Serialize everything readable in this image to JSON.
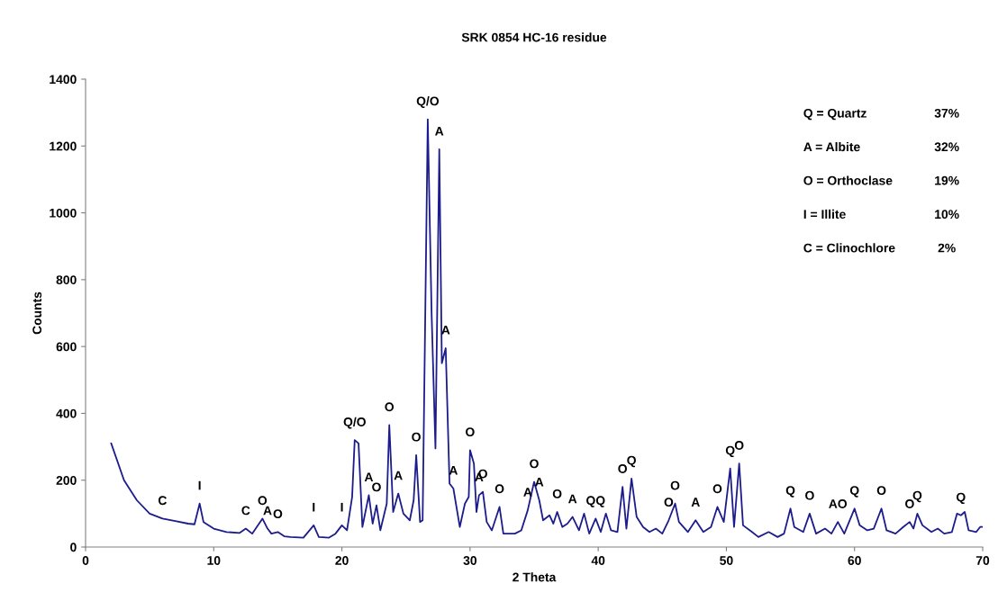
{
  "chart_data": {
    "type": "line",
    "title": "SRK 0854 HC-16 residue",
    "xlabel": "2 Theta",
    "ylabel": "Counts",
    "xlim": [
      0,
      70
    ],
    "xticks": [
      0,
      10,
      20,
      30,
      40,
      50,
      60,
      70
    ],
    "ylim": [
      0,
      1400
    ],
    "yticks": [
      0,
      200,
      400,
      600,
      800,
      1000,
      1200,
      1400
    ],
    "grid": false,
    "legend": false,
    "marker": "none",
    "line_style": "solid",
    "series": [
      {
        "color": "#1c1c8c",
        "x": [
          2,
          3,
          4,
          5,
          6,
          7,
          8,
          8.5,
          8.9,
          9.2,
          10,
          11,
          12,
          12.5,
          13,
          13.8,
          14.2,
          14.5,
          15,
          15.5,
          16,
          17,
          17.8,
          18.2,
          19,
          19.5,
          20,
          20.4,
          20.8,
          21.0,
          21.3,
          21.6,
          22.1,
          22.4,
          22.7,
          23,
          23.5,
          23.7,
          24.0,
          24.4,
          24.8,
          25.3,
          25.6,
          25.8,
          26.1,
          26.3,
          26.7,
          27.0,
          27.3,
          27.6,
          27.8,
          28.1,
          28.4,
          28.7,
          29.2,
          29.6,
          29.9,
          30.0,
          30.3,
          30.5,
          30.7,
          31.0,
          31.3,
          31.7,
          32.3,
          32.6,
          33.5,
          34.0,
          34.5,
          35.0,
          35.4,
          35.7,
          36.2,
          36.5,
          36.8,
          37.2,
          37.6,
          38.0,
          38.5,
          38.9,
          39.3,
          39.8,
          40.2,
          40.6,
          41.0,
          41.5,
          41.9,
          42.2,
          42.6,
          43.0,
          43.5,
          44.0,
          44.5,
          45.0,
          45.5,
          46.0,
          46.3,
          47.0,
          47.6,
          48.2,
          48.8,
          49.3,
          49.8,
          50.3,
          50.6,
          51.0,
          51.3,
          52.0,
          52.5,
          53.3,
          54.0,
          54.5,
          55.0,
          55.3,
          56.0,
          56.5,
          57.0,
          57.7,
          58.2,
          58.7,
          59.2,
          60.0,
          60.4,
          61.0,
          61.5,
          62.1,
          62.5,
          63.2,
          63.8,
          64.3,
          64.6,
          64.9,
          65.3,
          66.0,
          66.5,
          67.0,
          67.6,
          68.0,
          68.3,
          68.6,
          68.9,
          69.5,
          69.8,
          70
        ],
        "values": [
          310,
          200,
          140,
          100,
          85,
          78,
          70,
          68,
          130,
          75,
          55,
          45,
          42,
          55,
          40,
          85,
          55,
          40,
          45,
          32,
          30,
          28,
          65,
          30,
          28,
          40,
          65,
          50,
          150,
          320,
          310,
          60,
          155,
          70,
          125,
          50,
          130,
          365,
          105,
          160,
          100,
          80,
          140,
          275,
          75,
          80,
          1280,
          700,
          295,
          1190,
          550,
          595,
          190,
          175,
          60,
          130,
          150,
          290,
          250,
          105,
          155,
          165,
          75,
          50,
          120,
          40,
          40,
          50,
          110,
          195,
          140,
          80,
          95,
          70,
          105,
          60,
          70,
          90,
          50,
          100,
          40,
          85,
          45,
          100,
          50,
          45,
          180,
          55,
          205,
          90,
          60,
          45,
          55,
          40,
          80,
          130,
          75,
          45,
          80,
          45,
          60,
          120,
          75,
          235,
          60,
          250,
          65,
          45,
          30,
          45,
          30,
          40,
          115,
          60,
          45,
          100,
          40,
          55,
          40,
          75,
          40,
          115,
          65,
          50,
          55,
          115,
          50,
          40,
          60,
          75,
          55,
          100,
          65,
          45,
          55,
          40,
          45,
          100,
          95,
          105,
          50,
          45,
          60,
          60
        ]
      }
    ],
    "annotations": [
      {
        "text": "C",
        "x": 6,
        "y": 85
      },
      {
        "text": "I",
        "x": 8.9,
        "y": 130
      },
      {
        "text": "C",
        "x": 12.5,
        "y": 55
      },
      {
        "text": "O",
        "x": 13.8,
        "y": 85
      },
      {
        "text": "A",
        "x": 14.2,
        "y": 55
      },
      {
        "text": "O",
        "x": 15,
        "y": 45
      },
      {
        "text": "I",
        "x": 17.8,
        "y": 65
      },
      {
        "text": "I",
        "x": 20,
        "y": 65
      },
      {
        "text": "Q/O",
        "x": 21.0,
        "y": 320
      },
      {
        "text": "A",
        "x": 22.1,
        "y": 155
      },
      {
        "text": "O",
        "x": 22.7,
        "y": 125
      },
      {
        "text": "O",
        "x": 23.7,
        "y": 365
      },
      {
        "text": "O",
        "x": 25.8,
        "y": 275
      },
      {
        "text": "A",
        "x": 24.4,
        "y": 160
      },
      {
        "text": "Q/O",
        "x": 26.7,
        "y": 1280
      },
      {
        "text": "A",
        "x": 27.6,
        "y": 1190
      },
      {
        "text": "A",
        "x": 28.1,
        "y": 595
      },
      {
        "text": "A",
        "x": 28.7,
        "y": 175
      },
      {
        "text": "O",
        "x": 30.0,
        "y": 290
      },
      {
        "text": "A",
        "x": 30.7,
        "y": 155
      },
      {
        "text": "O",
        "x": 31.0,
        "y": 165
      },
      {
        "text": "O",
        "x": 32.3,
        "y": 120
      },
      {
        "text": "A",
        "x": 34.5,
        "y": 110
      },
      {
        "text": "O",
        "x": 35.0,
        "y": 195
      },
      {
        "text": "A",
        "x": 35.4,
        "y": 140
      },
      {
        "text": "O",
        "x": 36.8,
        "y": 105
      },
      {
        "text": "A",
        "x": 38.0,
        "y": 90
      },
      {
        "text": "QQ",
        "x": 39.8,
        "y": 85
      },
      {
        "text": "O",
        "x": 41.9,
        "y": 180
      },
      {
        "text": "Q",
        "x": 42.6,
        "y": 205
      },
      {
        "text": "O",
        "x": 45.5,
        "y": 80
      },
      {
        "text": "O",
        "x": 46.0,
        "y": 130
      },
      {
        "text": "A",
        "x": 47.6,
        "y": 80
      },
      {
        "text": "O",
        "x": 49.3,
        "y": 120
      },
      {
        "text": "Q",
        "x": 50.3,
        "y": 235
      },
      {
        "text": "O",
        "x": 51.0,
        "y": 250
      },
      {
        "text": "Q",
        "x": 55.0,
        "y": 115
      },
      {
        "text": "O",
        "x": 56.5,
        "y": 100
      },
      {
        "text": "AO",
        "x": 58.7,
        "y": 75
      },
      {
        "text": "Q",
        "x": 60.0,
        "y": 115
      },
      {
        "text": "O",
        "x": 62.1,
        "y": 115
      },
      {
        "text": "O",
        "x": 64.3,
        "y": 75
      },
      {
        "text": "Q",
        "x": 64.9,
        "y": 100
      },
      {
        "text": "Q",
        "x": 68.3,
        "y": 95
      },
      "Q = Quartz",
      "37%",
      "A = Albite",
      "32%",
      "O = Orthoclase",
      "19%",
      "I = Illite",
      "10%",
      "C = Clinochlore",
      "2%"
    ]
  }
}
